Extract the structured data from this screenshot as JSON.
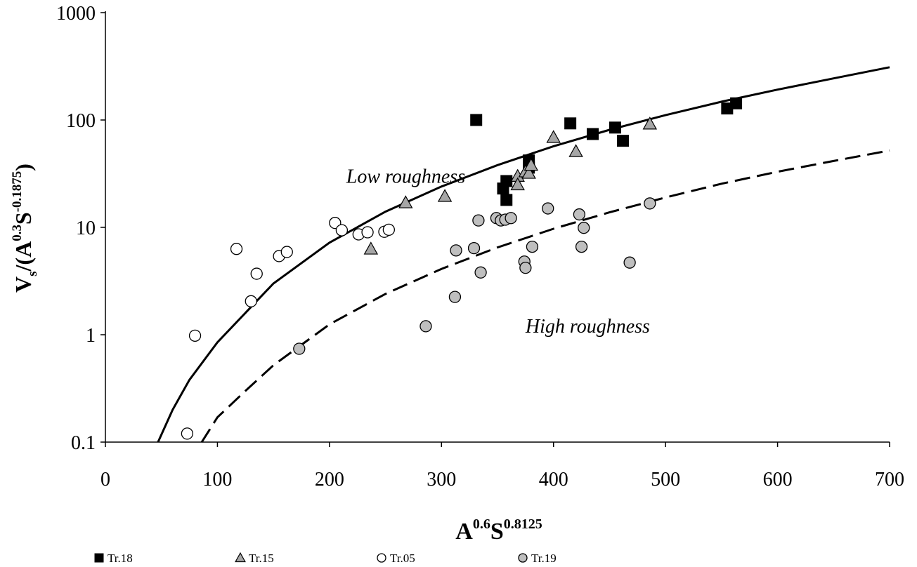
{
  "chart_data": {
    "type": "scatter",
    "title": "",
    "xlabel": {
      "base_A": "A",
      "sup_A": "0.6",
      "base_S": "S",
      "sup_S": "0.8125"
    },
    "ylabel": {
      "prefix": "V",
      "sub": "s",
      "mid": "/(A",
      "sup_A": "0.3",
      "base_S": "S",
      "sup_S": "-0.1875",
      "close": ")"
    },
    "xlim": [
      0,
      700
    ],
    "ylim": [
      0.1,
      1000
    ],
    "yscale": "log",
    "grid": false,
    "legend_position": "bottom",
    "x_ticks": [
      {
        "value": 0,
        "label": "0"
      },
      {
        "value": 100,
        "label": "100"
      },
      {
        "value": 200,
        "label": "200"
      },
      {
        "value": 300,
        "label": "300"
      },
      {
        "value": 400,
        "label": "400"
      },
      {
        "value": 500,
        "label": "500"
      },
      {
        "value": 600,
        "label": "600"
      },
      {
        "value": 700,
        "label": "700"
      }
    ],
    "y_ticks": [
      {
        "value": 0.1,
        "label": "0.1"
      },
      {
        "value": 1,
        "label": "1"
      },
      {
        "value": 10,
        "label": "10"
      },
      {
        "value": 100,
        "label": "100"
      },
      {
        "value": 1000,
        "label": "1000"
      }
    ],
    "annotations": [
      {
        "text": "Low roughness",
        "x": 215,
        "y": 26
      },
      {
        "text": "High roughness",
        "x": 375,
        "y": 1.05
      }
    ],
    "series": [
      {
        "name": "Tr.18",
        "marker": "square",
        "fill": "#000000",
        "stroke": "#000000",
        "points": [
          [
            331,
            100
          ],
          [
            355,
            23
          ],
          [
            358,
            27
          ],
          [
            358,
            18
          ],
          [
            378,
            42
          ],
          [
            378,
            36
          ],
          [
            415,
            93
          ],
          [
            435,
            74
          ],
          [
            455,
            85
          ],
          [
            462,
            64
          ],
          [
            555,
            128
          ],
          [
            563,
            143
          ]
        ]
      },
      {
        "name": "Tr.15",
        "marker": "triangle",
        "fill": "#a6a6a6",
        "stroke": "#000000",
        "points": [
          [
            237,
            6.3
          ],
          [
            268,
            17
          ],
          [
            303,
            19.5
          ],
          [
            368,
            30
          ],
          [
            368,
            25
          ],
          [
            375,
            33
          ],
          [
            378,
            32
          ],
          [
            380,
            38
          ],
          [
            400,
            69
          ],
          [
            420,
            51
          ],
          [
            486,
            92
          ]
        ]
      },
      {
        "name": "Tr.05",
        "marker": "circle",
        "fill": "#ffffff",
        "stroke": "#000000",
        "points": [
          [
            73,
            0.12
          ],
          [
            80,
            0.98
          ],
          [
            117,
            6.3
          ],
          [
            130,
            2.05
          ],
          [
            135,
            3.7
          ],
          [
            155,
            5.4
          ],
          [
            162,
            5.9
          ],
          [
            205,
            11
          ],
          [
            211,
            9.4
          ],
          [
            226,
            8.6
          ],
          [
            234,
            9
          ],
          [
            249,
            9.1
          ],
          [
            253,
            9.5
          ]
        ]
      },
      {
        "name": "Tr.19",
        "marker": "circle",
        "fill": "#bfbfbf",
        "stroke": "#000000",
        "points": [
          [
            173,
            0.74
          ],
          [
            286,
            1.2
          ],
          [
            312,
            2.25
          ],
          [
            313,
            6.1
          ],
          [
            329,
            6.4
          ],
          [
            333,
            11.6
          ],
          [
            335,
            3.8
          ],
          [
            349,
            12.2
          ],
          [
            353,
            11.6
          ],
          [
            357,
            11.8
          ],
          [
            362,
            12.2
          ],
          [
            374,
            4.8
          ],
          [
            375,
            4.2
          ],
          [
            381,
            6.6
          ],
          [
            395,
            15
          ],
          [
            423,
            13.2
          ],
          [
            425,
            6.6
          ],
          [
            427,
            9.9
          ],
          [
            468,
            4.7
          ],
          [
            486,
            16.7
          ]
        ]
      }
    ],
    "curves": [
      {
        "style": "solid",
        "points": [
          [
            47,
            0.1
          ],
          [
            60,
            0.2
          ],
          [
            75,
            0.38
          ],
          [
            100,
            0.85
          ],
          [
            150,
            3.0
          ],
          [
            200,
            7.2
          ],
          [
            250,
            14
          ],
          [
            300,
            24
          ],
          [
            350,
            38
          ],
          [
            400,
            57
          ],
          [
            450,
            81
          ],
          [
            500,
            111
          ],
          [
            550,
            148
          ],
          [
            600,
            192
          ],
          [
            650,
            244
          ],
          [
            700,
            310
          ]
        ]
      },
      {
        "style": "dashed",
        "points": [
          [
            86,
            0.1
          ],
          [
            100,
            0.17
          ],
          [
            125,
            0.3
          ],
          [
            150,
            0.52
          ],
          [
            200,
            1.25
          ],
          [
            250,
            2.4
          ],
          [
            300,
            4.1
          ],
          [
            350,
            6.5
          ],
          [
            400,
            9.7
          ],
          [
            450,
            13.8
          ],
          [
            500,
            19
          ],
          [
            550,
            25.5
          ],
          [
            600,
            33
          ],
          [
            650,
            41.5
          ],
          [
            700,
            52
          ]
        ]
      }
    ]
  }
}
